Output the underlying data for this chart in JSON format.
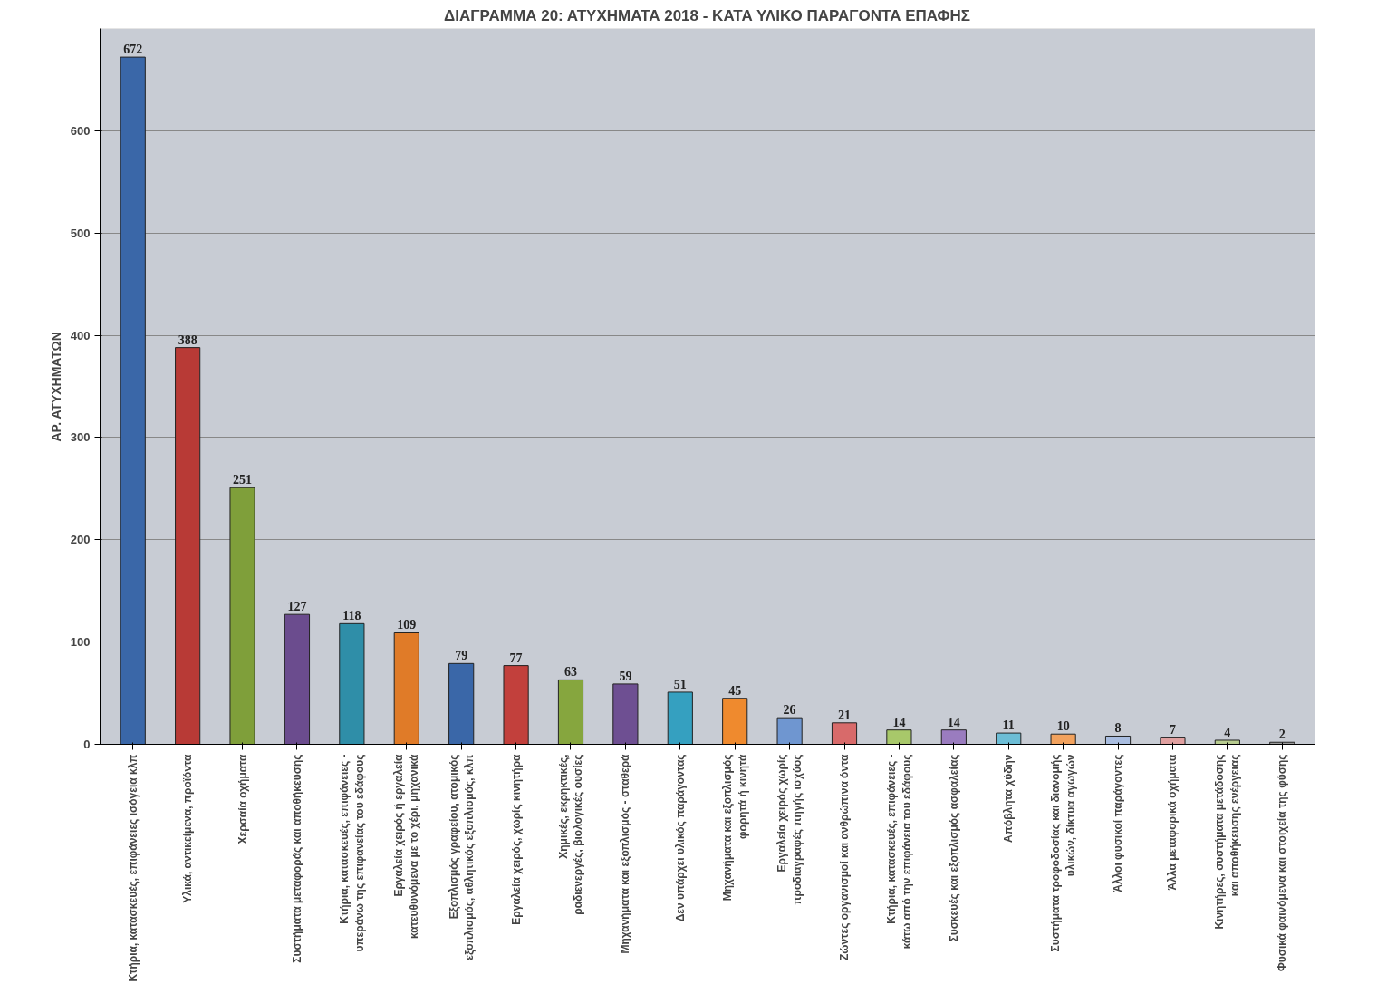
{
  "chart_data": {
    "type": "bar",
    "title": "ΔΙΑΓΡΑΜΜΑ 20: ΑΤΥΧΗΜΑΤΑ 2018 - ΚΑΤΑ ΥΛΙΚΟ ΠΑΡΑΓΟΝΤΑ ΕΠΑΦΗΣ",
    "ylabel": "ΑΡ. ΑΤΥΧΗΜΑΤΩΝ",
    "categories": [
      "Κτήρια, κατασκευές, επιφάνειες ισόγεια κλπ",
      "Υλικά, αντικείμενα, προϊόντα",
      "Χερσαία οχήματα",
      "Συστήματα μεταφοράς και αποθήκευσης",
      "Κτήρια, κατασκευές, επιφάνειες -\nυπεράνω της επιφανείας του εδάφους",
      "Εργαλεία χειρός ή εργαλεία\nκατευθυνόμενα με το χέρι, μηχανικά",
      "Εξοπλισμός γραφείου, ατομικός\nεξοπλισμός, αθλητικός εξοπλισμός, κλπ",
      "Εργαλεία χειρός, χωρίς κινητήρα",
      "Χημικές, εκρηκτικές,\nραδιενεργές, βιολογικές ουσίες",
      "Μηχανήματα και εξοπλισμός - σταθερά",
      "Δεν υπάρχει υλικός παράγοντας",
      "Μηχανήματα και εξοπλισμός\nφορητά ή κινητά",
      "Εργαλεία χειρός χωρίς\nπροδιαγραφές πηγής ισχύος",
      "Ζώντες οργανισμοί και ανθρώπινα όντα",
      "Κτήρια, κατασκευές, επιφάνειες -\nκάτω από την επιφάνεια του εδάφους",
      "Συσκευές και εξοπλισμός ασφαλείας",
      "Απόβλητα χύδην",
      "Συστήματα τροφοδοσίας και διανομής\nυλικών, δίκτυα αγωγών",
      "Άλλοι φυσικοί παράγοντες",
      "Άλλα μεταφορικά οχήματα",
      "Κινητήρες, συστήματα μετάδοσης\nκαι αποθήκευσης ενέργειας",
      "Φυσικά φαινόμενα και στοιχεία της φύσης"
    ],
    "values": [
      672,
      388,
      251,
      127,
      118,
      109,
      79,
      77,
      63,
      59,
      51,
      45,
      26,
      21,
      14,
      14,
      11,
      10,
      8,
      7,
      4,
      2
    ],
    "colors": [
      "#3a67a8",
      "#b83a36",
      "#7f9f3a",
      "#6b4c8e",
      "#2f8ea8",
      "#e07b28",
      "#3a67a8",
      "#c2403c",
      "#86a63e",
      "#6e4f92",
      "#35a0c0",
      "#ef8a2e",
      "#6f96d0",
      "#d86a6a",
      "#a8c86a",
      "#9a7cbf",
      "#6cbdd6",
      "#f2a25e",
      "#a9bde0",
      "#e0a0a0",
      "#b8cc90",
      "#9a9a9a"
    ],
    "ylim": [
      0,
      700
    ],
    "yticks": [
      0,
      100,
      200,
      300,
      400,
      500,
      600
    ],
    "grid": "y",
    "data_labels": true
  }
}
